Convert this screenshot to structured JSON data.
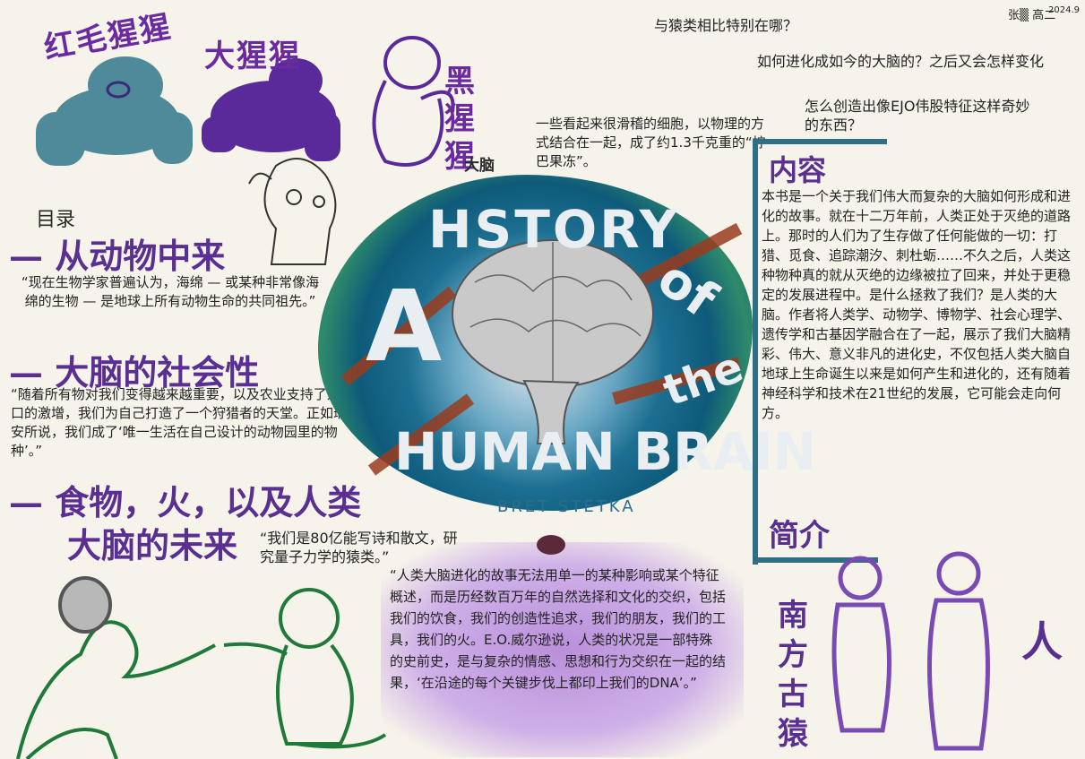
{
  "header": {
    "date": "2024.9",
    "author": "张▒ 高二"
  },
  "apes": {
    "orangutan": "红毛猩猩",
    "gorilla": "大猩猩",
    "chimp": "黑猩猩"
  },
  "questions": {
    "q1": "与猿类相比特别在哪？",
    "q2": "如何进化成如今的大脑的？之后又会怎样变化",
    "q3": "怎么创造出像EJO伟股特征这样奇妙的东西？"
  },
  "brain_note": {
    "label": "大脑",
    "text": "一些看起来很滑稽的细胞，以物理的方式结合在一起，成了约1.3千克重的“拧巴果冻”。"
  },
  "toc": {
    "title": "目录",
    "s1": "— 从动物中来",
    "q1": "“现在生物学家普遍认为，海绵 — 或某种非常像海绵的生物 — 是地球上所有动物生命的共同祖先。”",
    "s2": "— 大脑的社会性",
    "q2": "“随着所有物对我们变得越来越重要，以及农业支持了人口的激增，我们为自己打造了一个狩猎者的天堂。正如瑞安所说，我们成了‘唯一生活在自己设计的动物园里的物种’。”",
    "s3": "— 食物，火，以及人类",
    "s3b": "大脑的未来",
    "q3": "“我们是80亿能写诗和散文，研究量子力学的猿类。”"
  },
  "cover": {
    "line1": "HSTORY",
    "a": "A",
    "of": "of",
    "the": "the",
    "line3": "HUMAN BRAIN",
    "author": "BRET STETKA"
  },
  "content": {
    "title": "内容",
    "body": "本书是一个关于我们伟大而复杂的大脑如何形成和进化的故事。就在十二万年前，人类正处于灭绝的道路上。那时的人们为了生存做了任何能做的一切：打猎、觅食、追踪潮汐、刺杜蛎……不久之后，人类这种物种真的就从灭绝的边缘被拉了回来，并处于更稳定的发展进程中。是什么拯救了我们？是人类的大脑。作者将人类学、动物学、博物学、社会心理学、遗传学和古基因学融合在了一起，展示了我们大脑精彩、伟大、意义非凡的进化史，不仅包括人类大脑自地球上生命诞生以来是如何产生和进化的，还有随着神经科学和技术在21世纪的发展，它可能会走向何方。",
    "intro": "简介"
  },
  "bottom_quote": "“人类大脑进化的故事无法用单一的某种影响或某个特征概述，而是历经数百万年的自然选择和文化的交织，包括我们的饮食，我们的创造性追求，我们的朋友，我们的工具，我们的火。E.O.威尔逊说，人类的状况是一部特殊的史前史，是与复杂的情感、思想和行为交织在一起的结果，‘在沿途的每个关键步伐上都印上我们的DNA’。”",
  "figures": {
    "australopith": "南方古猿",
    "human": "人"
  },
  "colors": {
    "purple": "#5a2f92",
    "teal": "#4f8a9a",
    "green": "#1f7a3a",
    "bracket": "#2f6f86"
  }
}
